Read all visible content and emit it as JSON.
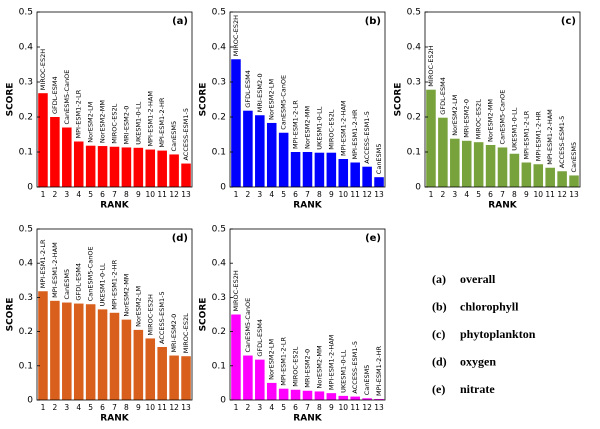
{
  "chart_data": [
    {
      "type": "bar",
      "panel": "(a)",
      "xlabel": "RANK",
      "ylabel": "SCORE",
      "color": "#ff0000",
      "categories": [
        "1",
        "2",
        "3",
        "4",
        "5",
        "6",
        "7",
        "8",
        "9",
        "10",
        "11",
        "12",
        "13"
      ],
      "bar_labels": [
        "MIROC-ES2H",
        "GFDL-ESM4",
        "CanESM5-CanOE",
        "MPI-ESM1-2-LR",
        "NorESM2-LM",
        "NorESM2-MM",
        "MIROC-ES2L",
        "MRI-ESM2-0",
        "UKESM1-0-LL",
        "MPI-ESM1-2-HAM",
        "MPI-ESM1-2-HR",
        "CanESM5",
        "ACCESS-ESM1-5"
      ],
      "values": [
        0.268,
        0.2,
        0.17,
        0.13,
        0.118,
        0.117,
        0.115,
        0.113,
        0.112,
        0.107,
        0.104,
        0.093,
        0.067
      ],
      "ylim": [
        0,
        0.5
      ],
      "yticks": [
        0,
        0.1,
        0.2,
        0.3,
        0.4,
        0.5
      ]
    },
    {
      "type": "bar",
      "panel": "(b)",
      "xlabel": "RANK",
      "ylabel": "SCORE",
      "color": "#0000ff",
      "categories": [
        "1",
        "2",
        "3",
        "4",
        "5",
        "6",
        "7",
        "8",
        "9",
        "10",
        "11",
        "12",
        "13"
      ],
      "bar_labels": [
        "MIROC-ES2H",
        "GFDL-ESM4",
        "MRI-ESM2-0",
        "NorESM2-LM",
        "CanESM5-CanOE",
        "MPI-ESM1-2-LR",
        "NorESM2-MM",
        "UKESM1-0-LL",
        "MIROC-ES2L",
        "MPI-ESM1-2-HAM",
        "MPI-ESM1-2-HR",
        "ACCESS-ESM1-5",
        "CanESM5"
      ],
      "values": [
        0.365,
        0.218,
        0.205,
        0.183,
        0.155,
        0.1,
        0.1,
        0.098,
        0.098,
        0.08,
        0.07,
        0.058,
        0.028
      ],
      "ylim": [
        0,
        0.5
      ],
      "yticks": [
        0,
        0.1,
        0.2,
        0.3,
        0.4,
        0.5
      ]
    },
    {
      "type": "bar",
      "panel": "(c)",
      "xlabel": "RANK",
      "ylabel": "SCORE",
      "color": "#78a23c",
      "categories": [
        "1",
        "2",
        "3",
        "4",
        "5",
        "6",
        "7",
        "8",
        "9",
        "10",
        "11",
        "12",
        "13"
      ],
      "bar_labels": [
        "MIROC-ES2H",
        "GFDL-ESM4",
        "NorESM2-LM",
        "MRI-ESM2-0",
        "MIROC-ES2L",
        "NorESM2-MM",
        "CanESM5-CanOE",
        "UKESM1-0-LL",
        "MPI-ESM1-2-LR",
        "MPI-ESM1-2-HR",
        "MPI-ESM1-2-HAM",
        "ACCESS-ESM1-5",
        "CanESM5"
      ],
      "values": [
        0.278,
        0.198,
        0.138,
        0.132,
        0.128,
        0.12,
        0.113,
        0.095,
        0.07,
        0.065,
        0.055,
        0.045,
        0.033
      ],
      "ylim": [
        0,
        0.5
      ],
      "yticks": [
        0,
        0.1,
        0.2,
        0.3,
        0.4,
        0.5
      ]
    },
    {
      "type": "bar",
      "panel": "(d)",
      "xlabel": "RANK",
      "ylabel": "SCORE",
      "color": "#d95f1c",
      "categories": [
        "1",
        "2",
        "3",
        "4",
        "5",
        "6",
        "7",
        "8",
        "9",
        "10",
        "11",
        "12",
        "13"
      ],
      "bar_labels": [
        "MPI-ESM1-2-LR",
        "MPI-ESM1-2-HAM",
        "CanESM5",
        "GFDL-ESM4",
        "CanESM5-CanOE",
        "UKESM1-0-LL",
        "MPI-ESM1-2-HR",
        "NorESM2-MM",
        "NorESM2-LM",
        "MIROC-ES2H",
        "ACCESS-ESM1-5",
        "MRI-ESM2-0",
        "MIROC-ES2L"
      ],
      "values": [
        0.318,
        0.29,
        0.285,
        0.282,
        0.28,
        0.265,
        0.255,
        0.235,
        0.205,
        0.18,
        0.155,
        0.13,
        0.128
      ],
      "ylim": [
        0,
        0.5
      ],
      "yticks": [
        0,
        0.1,
        0.2,
        0.3,
        0.4,
        0.5
      ]
    },
    {
      "type": "bar",
      "panel": "(e)",
      "xlabel": "RANK",
      "ylabel": "SCORE",
      "color": "#ff00ff",
      "categories": [
        "1",
        "2",
        "3",
        "4",
        "5",
        "6",
        "7",
        "8",
        "9",
        "10",
        "11",
        "12",
        "13"
      ],
      "bar_labels": [
        "MIROC-ES2H",
        "CanESM5-CanOE",
        "GFDL-ESM4",
        "NorESM2-LM",
        "MPI-ESM1-2-LR",
        "MIROC-ES2L",
        "MRI-ESM2-0",
        "NorESM2-MM",
        "MPI-ESM1-2-HAM",
        "UKESM1-0-LL",
        "ACCESS-ESM1-5",
        "CanESM5",
        "MPI-ESM1-2-HR"
      ],
      "values": [
        0.25,
        0.13,
        0.118,
        0.05,
        0.033,
        0.03,
        0.027,
        0.025,
        0.02,
        0.012,
        0.01,
        0.005,
        0.003
      ],
      "ylim": [
        0,
        0.5
      ],
      "yticks": [
        0,
        0.1,
        0.2,
        0.3,
        0.4,
        0.5
      ]
    }
  ],
  "panel_legend": [
    {
      "key": "(a)",
      "text": "overall"
    },
    {
      "key": "(b)",
      "text": "chlorophyll"
    },
    {
      "key": "(c)",
      "text": "phytoplankton"
    },
    {
      "key": "(d)",
      "text": "oxygen"
    },
    {
      "key": "(e)",
      "text": "nitrate"
    }
  ]
}
